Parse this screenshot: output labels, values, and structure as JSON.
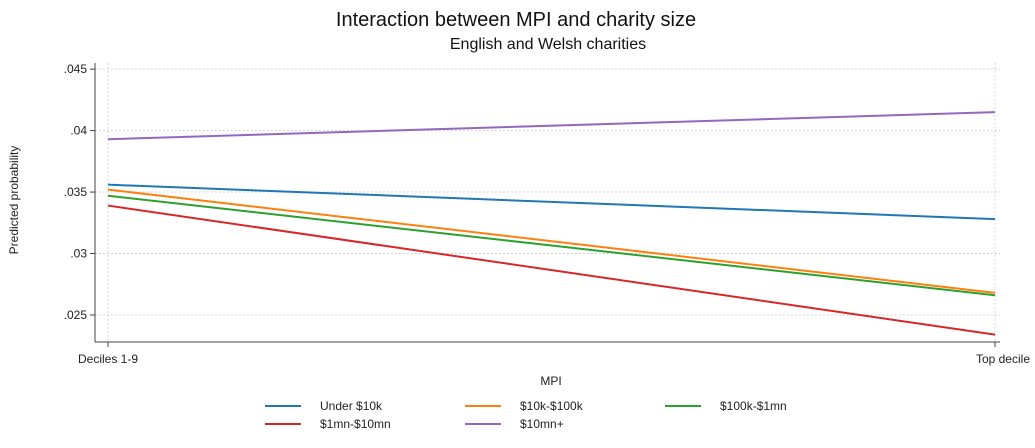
{
  "chart_data": {
    "type": "line",
    "title": "Interaction between MPI and charity size",
    "subtitle": "English and Welsh charities",
    "xlabel": "MPI",
    "ylabel": "Predicted probability",
    "categories": [
      "Deciles 1-9",
      "Top decile"
    ],
    "ylim": [
      0.0228,
      0.0455
    ],
    "yticks": [
      {
        "value": 0.025,
        "label": ".025"
      },
      {
        "value": 0.03,
        "label": ".03"
      },
      {
        "value": 0.035,
        "label": ".035"
      },
      {
        "value": 0.04,
        "label": ".04"
      },
      {
        "value": 0.045,
        "label": ".045"
      }
    ],
    "grid": true,
    "legend_position": "bottom",
    "series": [
      {
        "name": "Under $10k",
        "color": "#1f77b4",
        "values": [
          0.0356,
          0.0328
        ]
      },
      {
        "name": "$10k-$100k",
        "color": "#ff7f0e",
        "values": [
          0.0352,
          0.0268
        ]
      },
      {
        "name": "$100k-$1mn",
        "color": "#2ca02c",
        "values": [
          0.0347,
          0.0266
        ]
      },
      {
        "name": "$1mn-$10mn",
        "color": "#d62728",
        "values": [
          0.0339,
          0.0234
        ]
      },
      {
        "name": "$10mn+",
        "color": "#9467bd",
        "values": [
          0.0393,
          0.0415
        ]
      }
    ]
  }
}
